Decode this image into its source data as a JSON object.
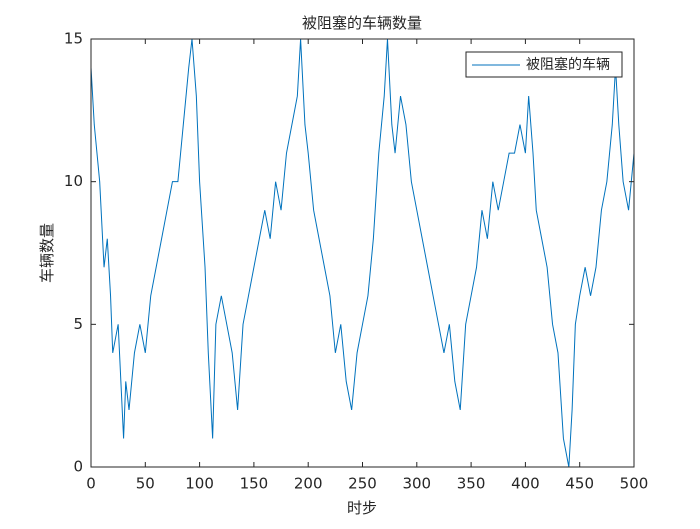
{
  "chart_data": {
    "type": "line",
    "title": "被阻塞的车辆数量",
    "xlabel": "时步",
    "ylabel": "车辆数量",
    "x": [
      0,
      3,
      8,
      12,
      15,
      18,
      20,
      25,
      30,
      32,
      35,
      40,
      45,
      50,
      55,
      60,
      65,
      70,
      75,
      80,
      85,
      90,
      93,
      97,
      100,
      105,
      108,
      112,
      115,
      120,
      125,
      130,
      135,
      140,
      145,
      150,
      155,
      160,
      165,
      170,
      175,
      180,
      185,
      190,
      193,
      197,
      200,
      205,
      210,
      215,
      220,
      225,
      230,
      235,
      240,
      245,
      250,
      255,
      260,
      265,
      270,
      273,
      277,
      280,
      285,
      290,
      295,
      300,
      305,
      310,
      315,
      320,
      325,
      330,
      335,
      340,
      345,
      350,
      355,
      360,
      365,
      370,
      375,
      380,
      385,
      390,
      395,
      400,
      403,
      407,
      410,
      415,
      420,
      425,
      430,
      435,
      440,
      443,
      446,
      450,
      455,
      460,
      465,
      470,
      475,
      480,
      483,
      486,
      490,
      495,
      500
    ],
    "series": [
      {
        "name": "被阻塞的车辆",
        "color": "#0072bd",
        "values": [
          14,
          12,
          10,
          7,
          8,
          6,
          4,
          5,
          1,
          3,
          2,
          4,
          5,
          4,
          6,
          7,
          8,
          9,
          10,
          10,
          12,
          14,
          15,
          13,
          10,
          7,
          4,
          1,
          5,
          6,
          5,
          4,
          2,
          5,
          6,
          7,
          8,
          9,
          8,
          10,
          9,
          11,
          12,
          13,
          15,
          12,
          11,
          9,
          8,
          7,
          6,
          4,
          5,
          3,
          2,
          4,
          5,
          6,
          8,
          11,
          13,
          15,
          12,
          11,
          13,
          12,
          10,
          9,
          8,
          7,
          6,
          5,
          4,
          5,
          3,
          2,
          5,
          6,
          7,
          9,
          8,
          10,
          9,
          10,
          11,
          11,
          12,
          11,
          13,
          11,
          9,
          8,
          7,
          5,
          4,
          1,
          0,
          2,
          5,
          6,
          7,
          6,
          7,
          9,
          10,
          12,
          14,
          12,
          10,
          9,
          11
        ]
      }
    ],
    "xlim": [
      0,
      500
    ],
    "ylim": [
      0,
      15
    ],
    "xticks": [
      0,
      50,
      100,
      150,
      200,
      250,
      300,
      350,
      400,
      450,
      500
    ],
    "yticks": [
      0,
      5,
      10,
      15
    ],
    "legend": "upper right"
  }
}
